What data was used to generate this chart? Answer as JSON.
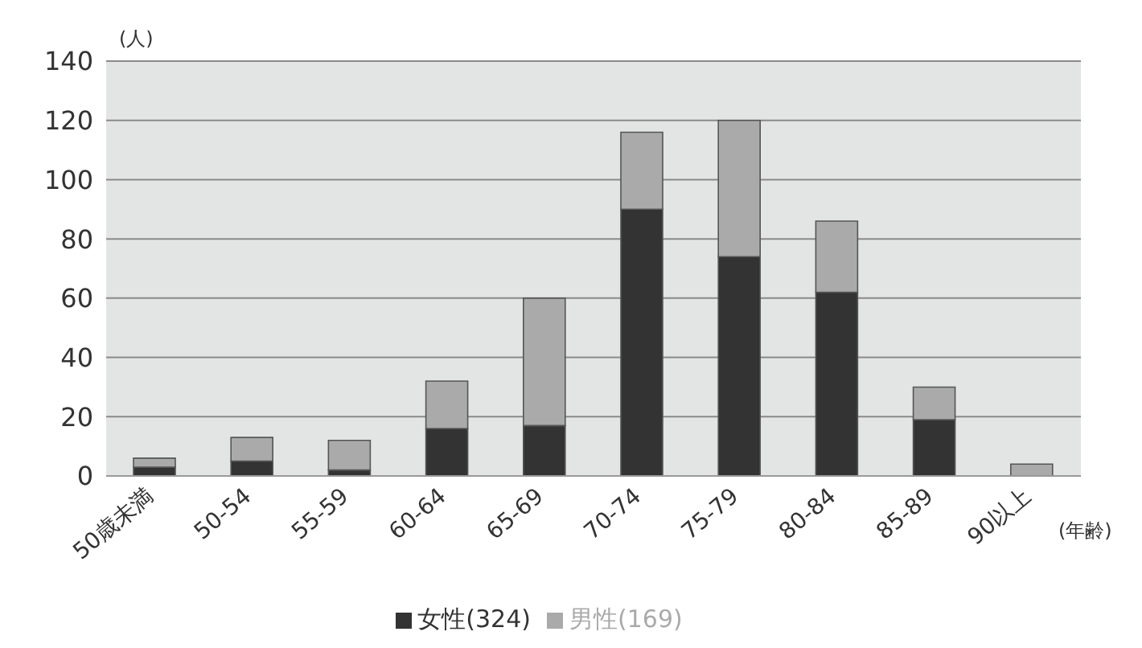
{
  "chart_data": {
    "type": "bar",
    "stacked": true,
    "ylabel": "(人)",
    "xlabel": "(年齢)",
    "categories": [
      "50歳未満",
      "50-54",
      "55-59",
      "60-64",
      "65-69",
      "70-74",
      "75-79",
      "80-84",
      "85-89",
      "90以上"
    ],
    "series": [
      {
        "name": "女性(324)",
        "color": "#333333",
        "values": [
          3,
          5,
          2,
          16,
          17,
          90,
          74,
          62,
          19,
          0
        ]
      },
      {
        "name": "男性(169)",
        "color": "#aaaaaa",
        "values": [
          3,
          8,
          10,
          16,
          43,
          26,
          46,
          24,
          11,
          4
        ]
      }
    ],
    "ylim": [
      0,
      140
    ],
    "yticks": [
      0,
      20,
      40,
      60,
      80,
      100,
      120,
      140
    ],
    "grid": "y",
    "legend": "bottom"
  }
}
